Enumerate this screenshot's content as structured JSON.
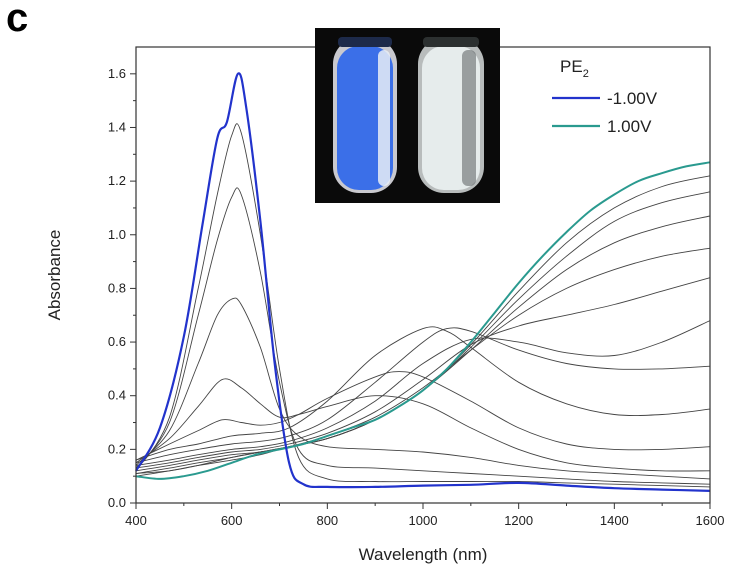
{
  "panel_label": "c",
  "inset_photo": {
    "description_icon": "vial-photo-icon",
    "colors": {
      "left_vial": "#3b6fe8",
      "right_vial": "#e6ecec",
      "background": "#0a0a0a"
    }
  },
  "chart_data": {
    "type": "line",
    "title": "",
    "xlabel": "Wavelength (nm)",
    "ylabel": "Absorbance",
    "xlim": [
      400,
      1600
    ],
    "ylim": [
      0,
      1.7
    ],
    "xticks": [
      400,
      600,
      800,
      1000,
      1200,
      1400,
      1600
    ],
    "yticks": [
      0.0,
      0.2,
      0.4,
      0.6,
      0.8,
      1.0,
      1.2,
      1.4,
      1.6
    ],
    "ytick_labels": [
      "0.0",
      "0.2",
      "0.4",
      "0.6",
      "0.8",
      "1.0",
      "1.2",
      "1.4",
      "1.6"
    ],
    "grid": false,
    "legend": {
      "placement": "top-right",
      "title": "PE",
      "title_subscript": "2",
      "entries": [
        {
          "label": "-1.00V",
          "color": "#2233cc"
        },
        {
          "label": "1.00V",
          "color": "#2a9a8f"
        }
      ]
    },
    "series": [
      {
        "name": "-1.00V",
        "color": "#2233cc",
        "width": 2.2,
        "x": [
          400,
          450,
          500,
          540,
          570,
          590,
          613,
          630,
          660,
          690,
          720,
          750,
          800,
          900,
          1000,
          1100,
          1200,
          1300,
          1400,
          1500,
          1600
        ],
        "y": [
          0.12,
          0.28,
          0.62,
          1.05,
          1.36,
          1.42,
          1.6,
          1.48,
          1.05,
          0.52,
          0.15,
          0.07,
          0.06,
          0.06,
          0.065,
          0.068,
          0.075,
          0.065,
          0.055,
          0.05,
          0.045
        ]
      },
      {
        "name": "1.00V",
        "color": "#2a9a8f",
        "width": 2.0,
        "x": [
          400,
          450,
          500,
          550,
          600,
          650,
          700,
          750,
          800,
          850,
          900,
          950,
          1000,
          1050,
          1100,
          1150,
          1200,
          1250,
          1300,
          1350,
          1400,
          1450,
          1500,
          1550,
          1600
        ],
        "y": [
          0.1,
          0.09,
          0.1,
          0.12,
          0.15,
          0.18,
          0.2,
          0.22,
          0.25,
          0.28,
          0.31,
          0.36,
          0.42,
          0.5,
          0.6,
          0.71,
          0.82,
          0.92,
          1.01,
          1.09,
          1.15,
          1.2,
          1.23,
          1.255,
          1.27
        ]
      },
      {
        "name": "",
        "color": "#444444",
        "width": 0.9,
        "x": [
          400,
          470,
          530,
          570,
          600,
          620,
          660,
          700,
          740,
          800,
          900,
          1000,
          1100,
          1200,
          1300,
          1400,
          1500,
          1600
        ],
        "y": [
          0.12,
          0.32,
          0.8,
          1.15,
          1.37,
          1.38,
          1.0,
          0.5,
          0.17,
          0.09,
          0.08,
          0.08,
          0.08,
          0.08,
          0.075,
          0.07,
          0.065,
          0.06
        ]
      },
      {
        "name": "",
        "color": "#444444",
        "width": 0.9,
        "x": [
          400,
          470,
          530,
          570,
          600,
          620,
          660,
          700,
          740,
          800,
          900,
          1000,
          1100,
          1200,
          1300,
          1400,
          1500,
          1600
        ],
        "y": [
          0.13,
          0.3,
          0.7,
          0.98,
          1.14,
          1.15,
          0.86,
          0.45,
          0.2,
          0.14,
          0.13,
          0.12,
          0.11,
          0.1,
          0.09,
          0.08,
          0.075,
          0.07
        ]
      },
      {
        "name": "",
        "color": "#444444",
        "width": 0.9,
        "x": [
          400,
          470,
          530,
          570,
          600,
          620,
          660,
          700,
          740,
          800,
          900,
          1000,
          1100,
          1200,
          1300,
          1400,
          1500,
          1600
        ],
        "y": [
          0.14,
          0.27,
          0.52,
          0.7,
          0.76,
          0.74,
          0.58,
          0.35,
          0.25,
          0.21,
          0.2,
          0.19,
          0.17,
          0.14,
          0.12,
          0.11,
          0.1,
          0.09
        ]
      },
      {
        "name": "",
        "color": "#444444",
        "width": 0.9,
        "x": [
          400,
          470,
          530,
          580,
          620,
          660,
          700,
          740,
          800,
          900,
          1000,
          1100,
          1200,
          1300,
          1400,
          1500,
          1600
        ],
        "y": [
          0.15,
          0.24,
          0.36,
          0.46,
          0.43,
          0.37,
          0.32,
          0.33,
          0.36,
          0.4,
          0.37,
          0.28,
          0.2,
          0.15,
          0.13,
          0.12,
          0.12
        ]
      },
      {
        "name": "",
        "color": "#444444",
        "width": 0.9,
        "x": [
          400,
          470,
          530,
          580,
          620,
          660,
          700,
          740,
          800,
          900,
          950,
          1000,
          1100,
          1200,
          1300,
          1400,
          1500,
          1600
        ],
        "y": [
          0.16,
          0.22,
          0.27,
          0.31,
          0.3,
          0.29,
          0.3,
          0.33,
          0.39,
          0.47,
          0.49,
          0.47,
          0.38,
          0.28,
          0.22,
          0.2,
          0.2,
          0.21
        ]
      },
      {
        "name": "",
        "color": "#444444",
        "width": 0.9,
        "x": [
          400,
          470,
          530,
          600,
          660,
          720,
          800,
          900,
          1000,
          1050,
          1100,
          1200,
          1300,
          1400,
          1500,
          1600
        ],
        "y": [
          0.16,
          0.2,
          0.22,
          0.25,
          0.26,
          0.28,
          0.38,
          0.55,
          0.65,
          0.64,
          0.58,
          0.45,
          0.37,
          0.33,
          0.33,
          0.35
        ]
      },
      {
        "name": "",
        "color": "#444444",
        "width": 0.9,
        "x": [
          400,
          470,
          530,
          600,
          660,
          720,
          800,
          900,
          1000,
          1050,
          1100,
          1200,
          1300,
          1400,
          1500,
          1600
        ],
        "y": [
          0.15,
          0.18,
          0.2,
          0.22,
          0.23,
          0.25,
          0.31,
          0.45,
          0.6,
          0.65,
          0.64,
          0.57,
          0.52,
          0.5,
          0.5,
          0.51
        ]
      },
      {
        "name": "",
        "color": "#444444",
        "width": 0.9,
        "x": [
          400,
          470,
          530,
          600,
          660,
          720,
          800,
          900,
          1000,
          1100,
          1200,
          1300,
          1400,
          1500,
          1600
        ],
        "y": [
          0.14,
          0.16,
          0.18,
          0.2,
          0.21,
          0.23,
          0.28,
          0.38,
          0.52,
          0.61,
          0.6,
          0.56,
          0.55,
          0.6,
          0.68
        ]
      },
      {
        "name": "",
        "color": "#444444",
        "width": 0.9,
        "x": [
          400,
          470,
          530,
          600,
          660,
          720,
          800,
          900,
          1000,
          1100,
          1200,
          1300,
          1400,
          1500,
          1600
        ],
        "y": [
          0.13,
          0.15,
          0.17,
          0.19,
          0.2,
          0.22,
          0.26,
          0.34,
          0.46,
          0.59,
          0.66,
          0.7,
          0.74,
          0.79,
          0.84
        ]
      },
      {
        "name": "",
        "color": "#444444",
        "width": 0.9,
        "x": [
          400,
          470,
          530,
          600,
          660,
          720,
          800,
          900,
          1000,
          1100,
          1200,
          1300,
          1400,
          1500,
          1600
        ],
        "y": [
          0.12,
          0.14,
          0.16,
          0.18,
          0.19,
          0.21,
          0.25,
          0.32,
          0.43,
          0.57,
          0.7,
          0.8,
          0.87,
          0.92,
          0.95
        ]
      },
      {
        "name": "",
        "color": "#444444",
        "width": 0.9,
        "x": [
          400,
          470,
          530,
          600,
          660,
          720,
          800,
          900,
          1000,
          1100,
          1200,
          1300,
          1400,
          1500,
          1600
        ],
        "y": [
          0.11,
          0.13,
          0.15,
          0.17,
          0.19,
          0.21,
          0.24,
          0.31,
          0.42,
          0.57,
          0.73,
          0.87,
          0.97,
          1.03,
          1.07
        ]
      },
      {
        "name": "",
        "color": "#444444",
        "width": 0.9,
        "x": [
          400,
          470,
          530,
          600,
          660,
          720,
          800,
          900,
          1000,
          1100,
          1200,
          1300,
          1400,
          1500,
          1600
        ],
        "y": [
          0.11,
          0.12,
          0.14,
          0.17,
          0.19,
          0.21,
          0.24,
          0.31,
          0.42,
          0.58,
          0.76,
          0.92,
          1.05,
          1.12,
          1.16
        ]
      },
      {
        "name": "",
        "color": "#444444",
        "width": 0.9,
        "x": [
          400,
          470,
          530,
          600,
          660,
          720,
          800,
          900,
          1000,
          1100,
          1200,
          1300,
          1400,
          1500,
          1600
        ],
        "y": [
          0.1,
          0.12,
          0.14,
          0.16,
          0.18,
          0.21,
          0.24,
          0.31,
          0.42,
          0.59,
          0.79,
          0.97,
          1.1,
          1.18,
          1.22
        ]
      }
    ]
  }
}
